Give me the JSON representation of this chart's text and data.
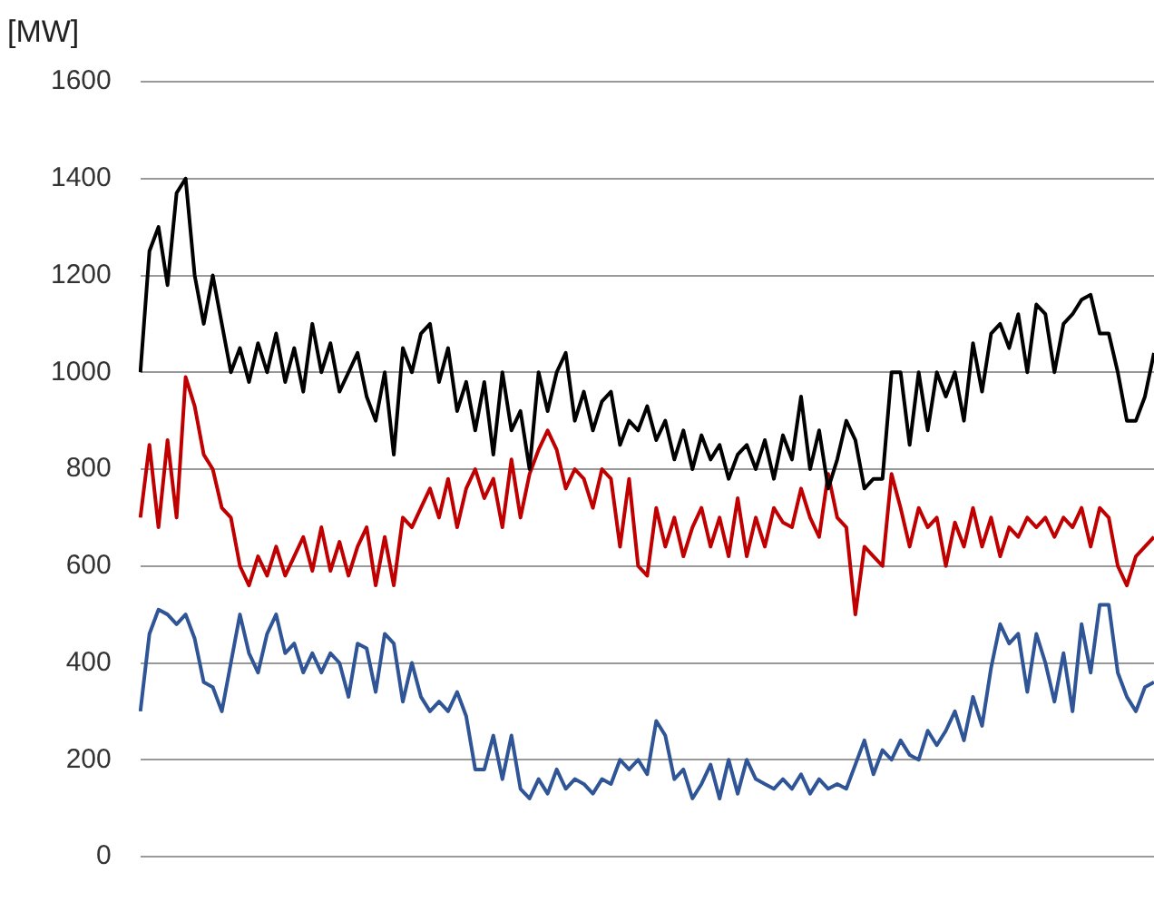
{
  "chart_data": {
    "type": "line",
    "ylabel": "[MW]",
    "categories": [
      null,
      null,
      null,
      null,
      null,
      null,
      null,
      null,
      null,
      null,
      null,
      null,
      null,
      null,
      null,
      null,
      null,
      null,
      null,
      null,
      null,
      null,
      null,
      null,
      null,
      null,
      null,
      null,
      null,
      null,
      null,
      null,
      null,
      null,
      null,
      null,
      null,
      null,
      null,
      null,
      null,
      null,
      null,
      null,
      null,
      null,
      null,
      null,
      null,
      null,
      null,
      null,
      null,
      null,
      null,
      null,
      null,
      null,
      null,
      null,
      null,
      null,
      null,
      null,
      null,
      null,
      null,
      null,
      null,
      null,
      null,
      null,
      null,
      null,
      null,
      null,
      null,
      null,
      null,
      null,
      null,
      null,
      null,
      null,
      null,
      null,
      null,
      null,
      null,
      null,
      null,
      null,
      null,
      null,
      null,
      null,
      null,
      null,
      null,
      null,
      null,
      null,
      null,
      null,
      null,
      null,
      null,
      null,
      null,
      null,
      null,
      null,
      null
    ],
    "series": [
      {
        "color": "#000000",
        "values": [
          1000,
          1250,
          1300,
          1180,
          1370,
          1400,
          1200,
          1100,
          1200,
          1100,
          1000,
          1050,
          980,
          1060,
          1000,
          1080,
          980,
          1050,
          960,
          1100,
          1000,
          1060,
          960,
          1000,
          1040,
          950,
          900,
          1000,
          830,
          1050,
          1000,
          1080,
          1100,
          980,
          1050,
          920,
          980,
          880,
          980,
          830,
          1000,
          880,
          920,
          800,
          1000,
          920,
          1000,
          1040,
          900,
          960,
          880,
          940,
          960,
          850,
          900,
          880,
          930,
          860,
          900,
          820,
          880,
          800,
          870,
          820,
          850,
          780,
          830,
          850,
          800,
          860,
          780,
          870,
          820,
          950,
          800,
          880,
          760,
          820,
          900,
          860,
          760,
          780,
          780,
          1000,
          1000,
          850,
          1000,
          880,
          1000,
          950,
          1000,
          900,
          1060,
          960,
          1080,
          1100,
          1050,
          1120,
          1000,
          1140,
          1120,
          1000,
          1100,
          1120,
          1150,
          1160,
          1080,
          1080,
          1000,
          900,
          900,
          950,
          1040
        ]
      },
      {
        "color": "#c00000",
        "values": [
          700,
          850,
          680,
          860,
          700,
          990,
          930,
          830,
          800,
          720,
          700,
          600,
          560,
          620,
          580,
          640,
          580,
          620,
          660,
          590,
          680,
          590,
          650,
          580,
          640,
          680,
          560,
          660,
          560,
          700,
          680,
          720,
          760,
          700,
          780,
          680,
          760,
          800,
          740,
          780,
          680,
          820,
          700,
          790,
          840,
          880,
          840,
          760,
          800,
          780,
          720,
          800,
          780,
          640,
          780,
          600,
          580,
          720,
          640,
          700,
          620,
          680,
          720,
          640,
          700,
          620,
          740,
          620,
          700,
          640,
          720,
          690,
          680,
          760,
          700,
          660,
          790,
          700,
          680,
          500,
          640,
          620,
          600,
          790,
          720,
          640,
          720,
          680,
          700,
          600,
          690,
          640,
          720,
          640,
          700,
          620,
          680,
          660,
          700,
          680,
          700,
          660,
          700,
          680,
          720,
          640,
          720,
          700,
          600,
          560,
          620,
          640,
          660
        ]
      },
      {
        "color": "#2f5597",
        "values": [
          300,
          460,
          510,
          500,
          480,
          500,
          450,
          360,
          350,
          300,
          400,
          500,
          420,
          380,
          460,
          500,
          420,
          440,
          380,
          420,
          380,
          420,
          400,
          330,
          440,
          430,
          340,
          460,
          440,
          320,
          400,
          330,
          300,
          320,
          300,
          340,
          290,
          180,
          180,
          250,
          160,
          250,
          140,
          120,
          160,
          130,
          180,
          140,
          160,
          150,
          130,
          160,
          150,
          200,
          180,
          200,
          170,
          280,
          250,
          160,
          180,
          120,
          150,
          190,
          120,
          200,
          130,
          200,
          160,
          150,
          140,
          160,
          140,
          170,
          130,
          160,
          140,
          150,
          140,
          190,
          240,
          170,
          220,
          200,
          240,
          210,
          200,
          260,
          230,
          260,
          300,
          240,
          330,
          270,
          390,
          480,
          440,
          460,
          340,
          460,
          400,
          320,
          420,
          300,
          480,
          380,
          520,
          520,
          380,
          330,
          300,
          350,
          360
        ]
      }
    ],
    "ylim": [
      0,
      1600
    ],
    "yticks": [
      0,
      200,
      400,
      600,
      800,
      1000,
      1200,
      1400,
      1600
    ],
    "grid": "y",
    "tick_labels": "y",
    "marker": "none",
    "line_style": "solid",
    "legend": false
  }
}
